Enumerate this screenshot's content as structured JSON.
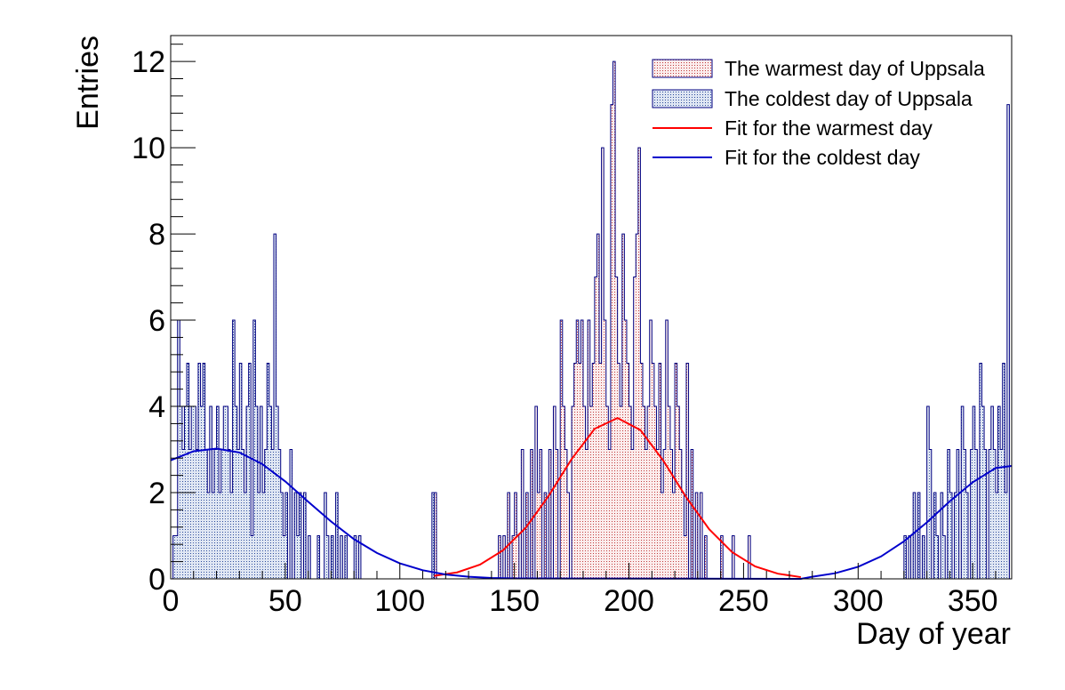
{
  "chart_data": {
    "type": "histogram",
    "title": "",
    "xlabel": "Day of year",
    "ylabel": "Entries",
    "xlim": [
      0,
      367
    ],
    "ylim": [
      0,
      12.6
    ],
    "bin_width": 1,
    "xticks": [
      0,
      50,
      100,
      150,
      200,
      250,
      300,
      350
    ],
    "yticks": [
      0,
      2,
      4,
      6,
      8,
      10,
      12
    ],
    "grid": false,
    "legend_position": "top-right",
    "series": [
      {
        "name": "The warmest day of Uppsala",
        "kind": "histogram",
        "edge_color": "#000080",
        "fill_color": "#f2c8c8",
        "bins": [
          [
            115,
            2
          ],
          [
            118,
            0
          ],
          [
            143,
            1
          ],
          [
            145,
            1
          ],
          [
            147,
            2
          ],
          [
            149,
            1
          ],
          [
            150,
            2
          ],
          [
            151,
            1
          ],
          [
            153,
            3
          ],
          [
            155,
            2
          ],
          [
            157,
            3
          ],
          [
            159,
            4
          ],
          [
            160,
            2
          ],
          [
            161,
            3
          ],
          [
            163,
            2
          ],
          [
            165,
            3
          ],
          [
            167,
            4
          ],
          [
            168,
            3
          ],
          [
            170,
            6
          ],
          [
            171,
            4
          ],
          [
            172,
            3
          ],
          [
            173,
            2
          ],
          [
            175,
            4
          ],
          [
            176,
            5
          ],
          [
            177,
            6
          ],
          [
            178,
            5
          ],
          [
            179,
            6
          ],
          [
            180,
            4
          ],
          [
            181,
            3
          ],
          [
            182,
            6
          ],
          [
            183,
            4
          ],
          [
            184,
            5
          ],
          [
            185,
            7
          ],
          [
            186,
            8
          ],
          [
            187,
            5
          ],
          [
            188,
            10
          ],
          [
            189,
            6
          ],
          [
            190,
            4
          ],
          [
            191,
            3
          ],
          [
            192,
            11
          ],
          [
            193,
            12
          ],
          [
            194,
            7
          ],
          [
            195,
            5
          ],
          [
            196,
            4
          ],
          [
            197,
            8
          ],
          [
            198,
            6
          ],
          [
            199,
            5
          ],
          [
            200,
            4
          ],
          [
            201,
            3
          ],
          [
            202,
            7
          ],
          [
            203,
            8
          ],
          [
            204,
            10
          ],
          [
            205,
            5
          ],
          [
            206,
            4
          ],
          [
            207,
            3
          ],
          [
            208,
            4
          ],
          [
            209,
            6
          ],
          [
            210,
            5
          ],
          [
            211,
            4
          ],
          [
            212,
            3
          ],
          [
            213,
            5
          ],
          [
            214,
            2
          ],
          [
            215,
            3
          ],
          [
            216,
            6
          ],
          [
            217,
            4
          ],
          [
            218,
            3
          ],
          [
            219,
            2
          ],
          [
            220,
            5
          ],
          [
            221,
            4
          ],
          [
            222,
            3
          ],
          [
            223,
            2
          ],
          [
            224,
            1
          ],
          [
            225,
            5
          ],
          [
            227,
            3
          ],
          [
            229,
            2
          ],
          [
            231,
            2
          ],
          [
            233,
            1
          ],
          [
            236,
            0
          ],
          [
            240,
            1
          ],
          [
            245,
            1
          ],
          [
            252,
            1
          ]
        ]
      },
      {
        "name": "The coldest day of Uppsala",
        "kind": "histogram",
        "edge_color": "#000080",
        "fill_color": "#b8c9e6",
        "bins": [
          [
            1,
            1
          ],
          [
            2,
            1
          ],
          [
            3,
            6
          ],
          [
            4,
            4
          ],
          [
            5,
            3
          ],
          [
            6,
            4
          ],
          [
            7,
            5
          ],
          [
            8,
            3
          ],
          [
            9,
            4
          ],
          [
            10,
            4
          ],
          [
            11,
            3
          ],
          [
            12,
            5
          ],
          [
            13,
            4
          ],
          [
            14,
            5
          ],
          [
            15,
            3
          ],
          [
            16,
            2
          ],
          [
            17,
            4
          ],
          [
            18,
            2
          ],
          [
            19,
            3
          ],
          [
            20,
            4
          ],
          [
            21,
            2
          ],
          [
            22,
            3
          ],
          [
            23,
            4
          ],
          [
            24,
            4
          ],
          [
            25,
            3
          ],
          [
            26,
            2
          ],
          [
            27,
            6
          ],
          [
            28,
            4
          ],
          [
            29,
            3
          ],
          [
            30,
            5
          ],
          [
            31,
            3
          ],
          [
            32,
            2
          ],
          [
            33,
            4
          ],
          [
            34,
            5
          ],
          [
            35,
            1
          ],
          [
            36,
            6
          ],
          [
            37,
            4
          ],
          [
            38,
            2
          ],
          [
            39,
            4
          ],
          [
            40,
            2
          ],
          [
            41,
            3
          ],
          [
            42,
            5
          ],
          [
            43,
            4
          ],
          [
            44,
            3
          ],
          [
            45,
            8
          ],
          [
            46,
            4
          ],
          [
            47,
            3
          ],
          [
            48,
            2
          ],
          [
            49,
            1
          ],
          [
            50,
            2
          ],
          [
            52,
            3
          ],
          [
            54,
            2
          ],
          [
            55,
            1
          ],
          [
            56,
            2
          ],
          [
            58,
            2
          ],
          [
            60,
            1
          ],
          [
            62,
            0
          ],
          [
            64,
            1
          ],
          [
            66,
            0
          ],
          [
            67,
            2
          ],
          [
            68,
            1
          ],
          [
            70,
            1
          ],
          [
            72,
            2
          ],
          [
            74,
            1
          ],
          [
            76,
            1
          ],
          [
            79,
            0
          ],
          [
            80,
            1
          ],
          [
            82,
            1
          ],
          [
            114,
            2
          ],
          [
            320,
            1
          ],
          [
            322,
            1
          ],
          [
            324,
            2
          ],
          [
            326,
            2
          ],
          [
            328,
            1
          ],
          [
            330,
            4
          ],
          [
            331,
            3
          ],
          [
            333,
            2
          ],
          [
            334,
            1
          ],
          [
            336,
            2
          ],
          [
            337,
            1
          ],
          [
            339,
            3
          ],
          [
            340,
            2
          ],
          [
            342,
            2
          ],
          [
            343,
            3
          ],
          [
            345,
            4
          ],
          [
            346,
            3
          ],
          [
            347,
            2
          ],
          [
            349,
            3
          ],
          [
            350,
            4
          ],
          [
            351,
            3
          ],
          [
            353,
            5
          ],
          [
            354,
            4
          ],
          [
            355,
            3
          ],
          [
            357,
            3
          ],
          [
            358,
            4
          ],
          [
            359,
            3
          ],
          [
            360,
            2
          ],
          [
            361,
            4
          ],
          [
            362,
            3
          ],
          [
            363,
            5
          ],
          [
            364,
            2
          ],
          [
            365,
            11
          ]
        ]
      },
      {
        "name": "Fit for the warmest day",
        "kind": "line",
        "color": "#ff0000",
        "x": [
          115,
          125,
          135,
          145,
          155,
          165,
          175,
          185,
          195,
          205,
          215,
          225,
          235,
          245,
          255,
          265,
          275
        ],
        "y": [
          0.07,
          0.15,
          0.33,
          0.66,
          1.19,
          1.93,
          2.78,
          3.48,
          3.73,
          3.45,
          2.74,
          1.89,
          1.15,
          0.62,
          0.29,
          0.12,
          0.04
        ]
      },
      {
        "name": "Fit for the coldest day",
        "kind": "line",
        "color": "#0000cc",
        "x": [
          0,
          10,
          20,
          30,
          40,
          50,
          60,
          70,
          80,
          90,
          100,
          110,
          120,
          130,
          140,
          150,
          275,
          280,
          290,
          300,
          310,
          320,
          330,
          340,
          350,
          360,
          367
        ],
        "y": [
          2.75,
          2.96,
          3.02,
          2.93,
          2.66,
          2.26,
          1.79,
          1.33,
          0.92,
          0.6,
          0.36,
          0.2,
          0.1,
          0.05,
          0.02,
          0.01,
          0.0,
          0.05,
          0.13,
          0.28,
          0.52,
          0.87,
          1.31,
          1.8,
          2.24,
          2.57,
          2.62
        ]
      }
    ]
  }
}
